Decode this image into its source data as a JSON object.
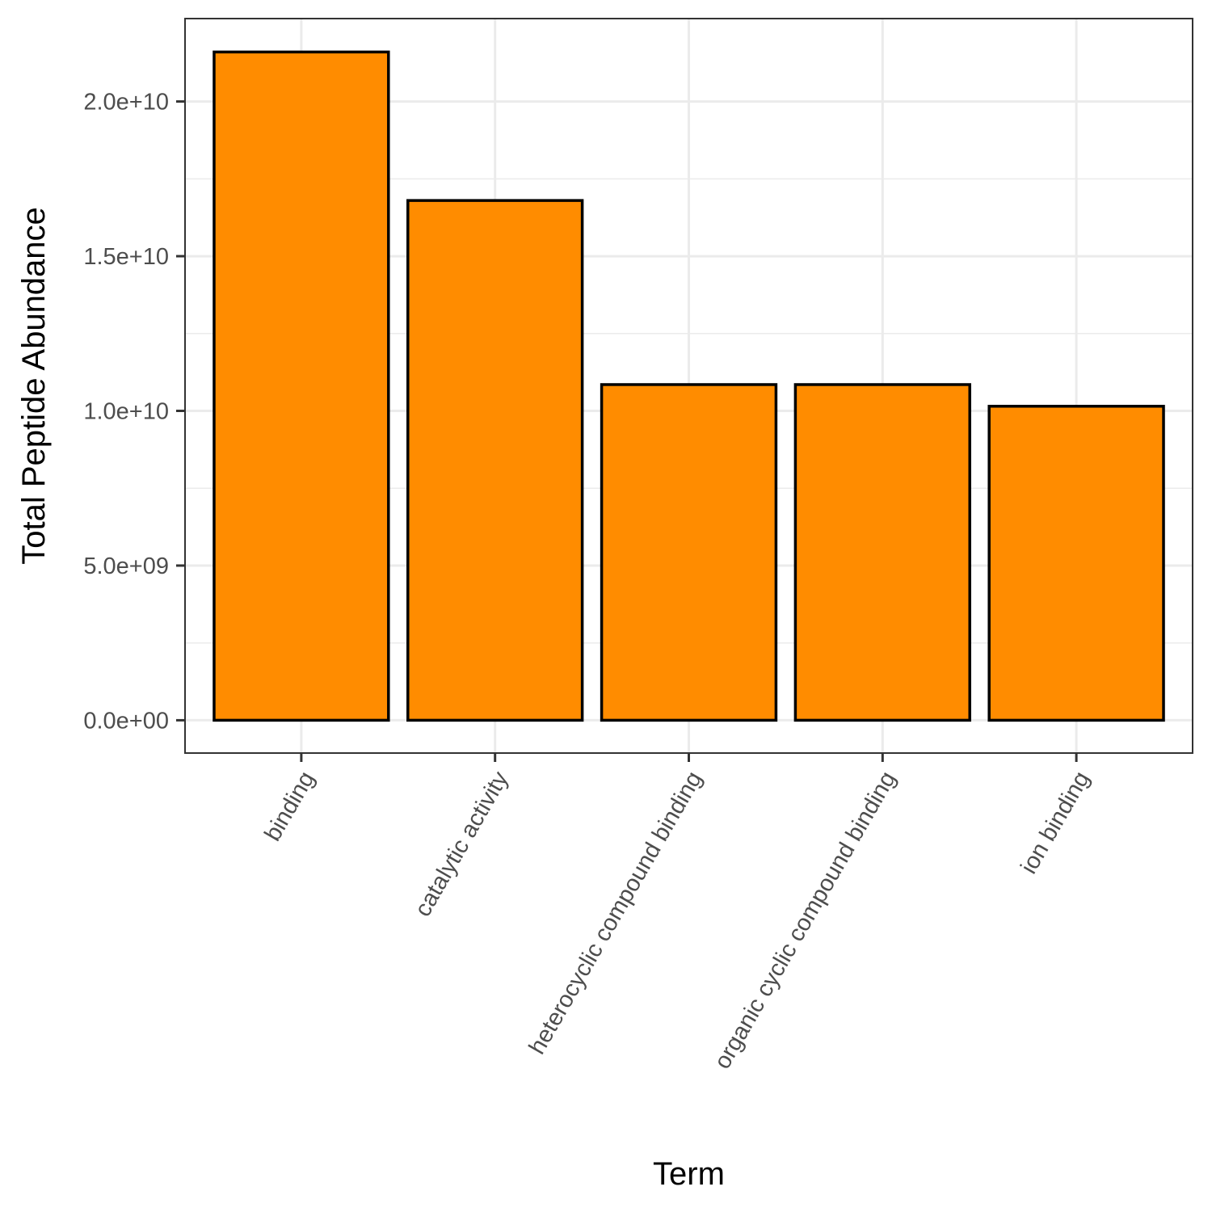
{
  "chart_data": {
    "type": "bar",
    "xlabel": "Term",
    "ylabel": "Total Peptide Abundance",
    "categories": [
      "binding",
      "catalytic activity",
      "heterocyclic compound binding",
      "organic cyclic compound binding",
      "ion binding"
    ],
    "values": [
      21600000000,
      16800000000,
      10850000000,
      10850000000,
      10150000000
    ],
    "ylim": [
      -1060000000,
      22680000000
    ],
    "y_ticks": [
      0,
      5000000000,
      10000000000,
      15000000000,
      20000000000
    ],
    "y_tick_labels": [
      "0.0e+00",
      "5.0e+09",
      "1.0e+10",
      "1.5e+10",
      "2.0e+10"
    ],
    "grid": true,
    "legend": "none",
    "colors": {
      "bar_fill": "#FF8C00",
      "bar_outline": "#000000"
    }
  }
}
